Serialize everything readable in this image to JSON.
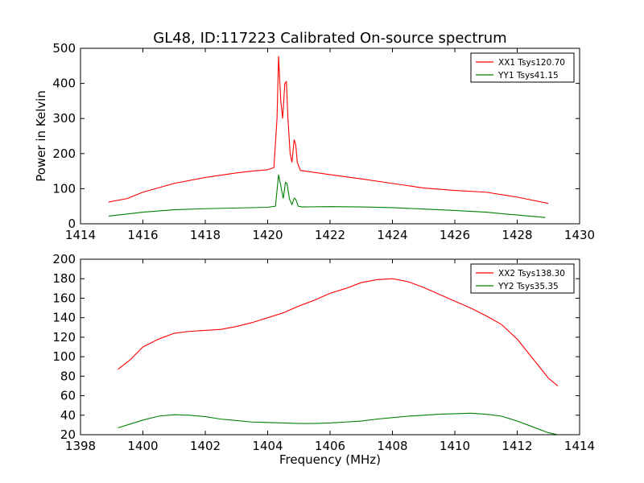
{
  "title": "GL48, ID:117223 Calibrated On-source spectrum",
  "chart_data": [
    {
      "type": "line",
      "title": "GL48, ID:117223 Calibrated On-source spectrum",
      "xlabel": "",
      "ylabel": "Power in Kelvin",
      "xlim": [
        1414,
        1430
      ],
      "ylim": [
        0,
        500
      ],
      "xticks": [
        1414,
        1416,
        1418,
        1420,
        1422,
        1424,
        1426,
        1428,
        1430
      ],
      "yticks": [
        0,
        100,
        200,
        300,
        400,
        500
      ],
      "grid": false,
      "legend_position": "top-right",
      "series": [
        {
          "name": "XX1 Tsys120.70",
          "color": "#ff0000",
          "points": [
            [
              1414.9,
              62
            ],
            [
              1415.5,
              72
            ],
            [
              1416,
              90
            ],
            [
              1417,
              115
            ],
            [
              1418,
              132
            ],
            [
              1419,
              145
            ],
            [
              1419.5,
              150
            ],
            [
              1420,
              154
            ],
            [
              1420.2,
              160
            ],
            [
              1420.3,
              300
            ],
            [
              1420.35,
              478
            ],
            [
              1420.42,
              350
            ],
            [
              1420.48,
              300
            ],
            [
              1420.55,
              400
            ],
            [
              1420.6,
              405
            ],
            [
              1420.65,
              300
            ],
            [
              1420.72,
              200
            ],
            [
              1420.78,
              175
            ],
            [
              1420.85,
              240
            ],
            [
              1420.9,
              225
            ],
            [
              1420.95,
              175
            ],
            [
              1421.05,
              152
            ],
            [
              1422,
              140
            ],
            [
              1423,
              128
            ],
            [
              1424,
              115
            ],
            [
              1425,
              102
            ],
            [
              1426,
              95
            ],
            [
              1427,
              90
            ],
            [
              1428,
              76
            ],
            [
              1429,
              58
            ]
          ]
        },
        {
          "name": "YY1 Tsys41.15",
          "color": "#008000",
          "points": [
            [
              1414.9,
              22
            ],
            [
              1415.5,
              28
            ],
            [
              1416,
              33
            ],
            [
              1417,
              40
            ],
            [
              1418,
              43
            ],
            [
              1419,
              45
            ],
            [
              1420,
              47
            ],
            [
              1420.25,
              50
            ],
            [
              1420.35,
              140
            ],
            [
              1420.45,
              95
            ],
            [
              1420.5,
              72
            ],
            [
              1420.57,
              118
            ],
            [
              1420.62,
              115
            ],
            [
              1420.7,
              70
            ],
            [
              1420.78,
              55
            ],
            [
              1420.85,
              73
            ],
            [
              1420.9,
              70
            ],
            [
              1420.98,
              50
            ],
            [
              1421.1,
              48
            ],
            [
              1422,
              49
            ],
            [
              1423,
              48
            ],
            [
              1424,
              46
            ],
            [
              1425,
              42
            ],
            [
              1426,
              38
            ],
            [
              1427,
              33
            ],
            [
              1428,
              25
            ],
            [
              1428.9,
              18
            ]
          ]
        }
      ]
    },
    {
      "type": "line",
      "title": "",
      "xlabel": "Frequency (MHz)",
      "ylabel": "",
      "xlim": [
        1398,
        1414
      ],
      "ylim": [
        20,
        200
      ],
      "xticks": [
        1398,
        1400,
        1402,
        1404,
        1406,
        1408,
        1410,
        1412,
        1414
      ],
      "yticks": [
        20,
        40,
        60,
        80,
        100,
        120,
        140,
        160,
        180,
        200
      ],
      "grid": false,
      "legend_position": "top-right",
      "series": [
        {
          "name": "XX2 Tsys138.30",
          "color": "#ff0000",
          "points": [
            [
              1399.2,
              87
            ],
            [
              1399.6,
              97
            ],
            [
              1400,
              110
            ],
            [
              1400.5,
              118
            ],
            [
              1401,
              124
            ],
            [
              1401.5,
              126
            ],
            [
              1402,
              127
            ],
            [
              1402.5,
              128
            ],
            [
              1403,
              131
            ],
            [
              1403.5,
              135
            ],
            [
              1404,
              140
            ],
            [
              1404.5,
              145
            ],
            [
              1405,
              152
            ],
            [
              1405.5,
              158
            ],
            [
              1406,
              165
            ],
            [
              1406.5,
              170
            ],
            [
              1407,
              176
            ],
            [
              1407.5,
              179
            ],
            [
              1408,
              180
            ],
            [
              1408.5,
              177
            ],
            [
              1409,
              171
            ],
            [
              1409.5,
              164
            ],
            [
              1410,
              157
            ],
            [
              1410.5,
              150
            ],
            [
              1411,
              142
            ],
            [
              1411.5,
              133
            ],
            [
              1412,
              118
            ],
            [
              1412.5,
              98
            ],
            [
              1413,
              78
            ],
            [
              1413.3,
              70
            ]
          ]
        },
        {
          "name": "YY2 Tsys35.35",
          "color": "#008000",
          "points": [
            [
              1399.2,
              27
            ],
            [
              1399.6,
              31
            ],
            [
              1400,
              35
            ],
            [
              1400.5,
              39
            ],
            [
              1401,
              40.5
            ],
            [
              1401.5,
              40
            ],
            [
              1402,
              38.5
            ],
            [
              1402.5,
              36
            ],
            [
              1403,
              34.5
            ],
            [
              1403.5,
              33
            ],
            [
              1404,
              32.5
            ],
            [
              1404.5,
              32
            ],
            [
              1405,
              31.5
            ],
            [
              1405.5,
              31.5
            ],
            [
              1406,
              32
            ],
            [
              1406.5,
              33
            ],
            [
              1407,
              34
            ],
            [
              1407.5,
              36
            ],
            [
              1408,
              37.5
            ],
            [
              1408.5,
              39
            ],
            [
              1409,
              40
            ],
            [
              1409.5,
              41
            ],
            [
              1410,
              41.5
            ],
            [
              1410.5,
              42
            ],
            [
              1411,
              41
            ],
            [
              1411.5,
              39
            ],
            [
              1412,
              34
            ],
            [
              1412.5,
              28
            ],
            [
              1413,
              22
            ],
            [
              1413.3,
              20
            ]
          ]
        }
      ]
    }
  ]
}
